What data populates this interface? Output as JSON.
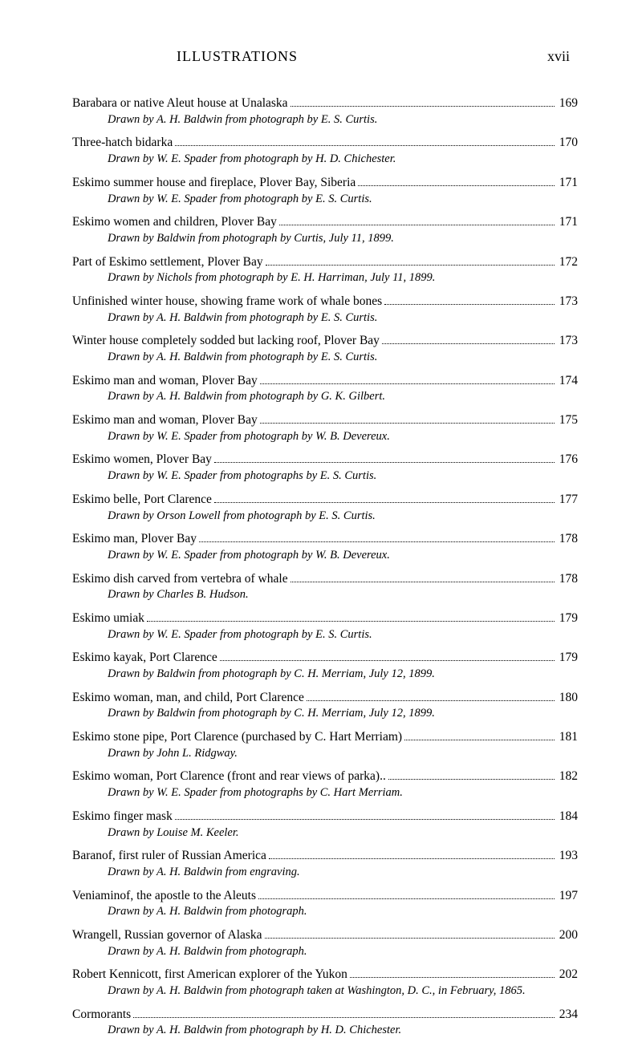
{
  "header": {
    "title": "ILLUSTRATIONS",
    "pageNum": "xvii"
  },
  "entries": [
    {
      "title": "Barabara or native Aleut house at Unalaska",
      "page": "169",
      "source": "Drawn by A. H. Baldwin from photograph by E. S. Curtis."
    },
    {
      "title": "Three-hatch bidarka",
      "page": "170",
      "source": "Drawn by W. E. Spader from photograph by H. D. Chichester."
    },
    {
      "title": "Eskimo summer house and fireplace, Plover Bay, Siberia",
      "page": "171",
      "source": "Drawn by W. E. Spader from photograph by E. S. Curtis."
    },
    {
      "title": "Eskimo women and children, Plover Bay",
      "page": "171",
      "source": "Drawn by Baldwin from photograph by Curtis, July 11, 1899."
    },
    {
      "title": "Part of Eskimo settlement, Plover Bay",
      "page": "172",
      "source": "Drawn by Nichols from photograph by E. H. Harriman, July 11, 1899."
    },
    {
      "title": "Unfinished winter house, showing frame work of whale bones",
      "page": "173",
      "source": "Drawn by A. H. Baldwin from photograph by E. S. Curtis."
    },
    {
      "title": "Winter house completely sodded but lacking roof, Plover Bay",
      "page": "173",
      "source": "Drawn by A. H. Baldwin from photograph by E. S. Curtis."
    },
    {
      "title": "Eskimo man and woman, Plover Bay",
      "page": "174",
      "source": "Drawn by A. H. Baldwin from photograph by G. K. Gilbert."
    },
    {
      "title": "Eskimo man and woman, Plover Bay",
      "page": "175",
      "source": "Drawn by W. E. Spader from photograph by W. B. Devereux."
    },
    {
      "title": "Eskimo women, Plover Bay",
      "page": "176",
      "source": "Drawn by W. E. Spader from photographs by E. S. Curtis."
    },
    {
      "title": "Eskimo belle, Port Clarence",
      "page": "177",
      "source": "Drawn by Orson Lowell from photograph by E. S. Curtis."
    },
    {
      "title": "Eskimo man, Plover Bay",
      "page": "178",
      "source": "Drawn by W. E. Spader from photograph by W. B. Devereux."
    },
    {
      "title": "Eskimo dish carved from vertebra of whale",
      "page": "178",
      "source": "Drawn by Charles B. Hudson."
    },
    {
      "title": "Eskimo umiak",
      "page": "179",
      "source": "Drawn by W. E. Spader from photograph by E. S. Curtis."
    },
    {
      "title": "Eskimo kayak, Port Clarence",
      "page": "179",
      "source": "Drawn by Baldwin from photograph by C. H. Merriam, July 12, 1899."
    },
    {
      "title": "Eskimo woman, man, and child, Port Clarence",
      "page": "180",
      "source": "Drawn by Baldwin from photograph by C. H. Merriam, July 12, 1899."
    },
    {
      "title": "Eskimo stone pipe, Port Clarence (purchased by C. Hart Merriam)",
      "page": "181",
      "source": "Drawn by John L. Ridgway."
    },
    {
      "title": "Eskimo woman, Port Clarence (front and rear views of parka)..",
      "page": "182",
      "source": "Drawn by W. E. Spader from photographs by C. Hart Merriam."
    },
    {
      "title": "Eskimo finger mask",
      "page": "184",
      "source": "Drawn by Louise M. Keeler."
    },
    {
      "title": "Baranof, first ruler of Russian America",
      "page": "193",
      "source": "Drawn by A. H. Baldwin from engraving."
    },
    {
      "title": "Veniaminof, the apostle to the Aleuts",
      "page": "197",
      "source": "Drawn by A. H. Baldwin from photograph."
    },
    {
      "title": "Wrangell, Russian governor of Alaska",
      "page": "200",
      "source": "Drawn by A. H. Baldwin from photograph."
    },
    {
      "title": "Robert Kennicott, first American explorer of the Yukon",
      "page": "202",
      "source": "Drawn by A. H. Baldwin from photograph taken at Washington, D. C., in February, 1865."
    },
    {
      "title": "Cormorants",
      "page": "234",
      "source": "Drawn by A. H. Baldwin from photograph by H. D. Chichester."
    }
  ]
}
